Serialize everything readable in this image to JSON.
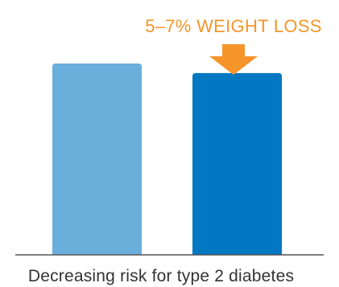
{
  "chart_data": {
    "type": "bar",
    "categories": [
      "",
      ""
    ],
    "values": [
      100,
      95
    ],
    "ylim": [
      0,
      100
    ],
    "grid": false,
    "bar_colors": [
      "#6aaedc",
      "#0277c2"
    ],
    "baseline_color": "#555555",
    "annotation": {
      "text": "5–7% WEIGHT LOSS",
      "color": "#f5952a",
      "target_category_index": 1,
      "icon": "down-arrow-icon"
    },
    "caption": "Decreasing risk for type 2 diabetes",
    "caption_color": "#333333"
  }
}
